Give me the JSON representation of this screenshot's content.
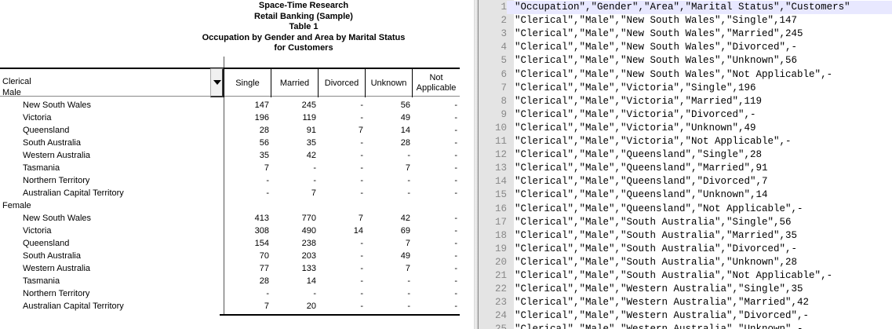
{
  "report": {
    "titles": [
      "Space-Time Research",
      "Retail Banking (Sample)",
      "Table 1",
      "Occupation by Gender and Area by Marital Status",
      "for Customers"
    ],
    "row_selector": "Clerical",
    "columns": [
      "Single",
      "Married",
      "Divorced",
      "Unknown",
      "Not Applicable"
    ],
    "groups": [
      {
        "label": "Male",
        "rows": [
          {
            "area": "New South Wales",
            "values": [
              "147",
              "245",
              "-",
              "56",
              "-"
            ]
          },
          {
            "area": "Victoria",
            "values": [
              "196",
              "119",
              "-",
              "49",
              "-"
            ]
          },
          {
            "area": "Queensland",
            "values": [
              "28",
              "91",
              "7",
              "14",
              "-"
            ]
          },
          {
            "area": "South Australia",
            "values": [
              "56",
              "35",
              "-",
              "28",
              "-"
            ]
          },
          {
            "area": "Western Australia",
            "values": [
              "35",
              "42",
              "-",
              "-",
              "-"
            ]
          },
          {
            "area": "Tasmania",
            "values": [
              "7",
              "-",
              "-",
              "7",
              "-"
            ]
          },
          {
            "area": "Northern Territory",
            "values": [
              "-",
              "-",
              "-",
              "-",
              "-"
            ]
          },
          {
            "area": "Australian Capital Territory",
            "values": [
              "-",
              "7",
              "-",
              "-",
              "-"
            ]
          }
        ]
      },
      {
        "label": "Female",
        "rows": [
          {
            "area": "New South Wales",
            "values": [
              "413",
              "770",
              "7",
              "42",
              "-"
            ]
          },
          {
            "area": "Victoria",
            "values": [
              "308",
              "490",
              "14",
              "69",
              "-"
            ]
          },
          {
            "area": "Queensland",
            "values": [
              "154",
              "238",
              "-",
              "7",
              "-"
            ]
          },
          {
            "area": "South Australia",
            "values": [
              "70",
              "203",
              "-",
              "49",
              "-"
            ]
          },
          {
            "area": "Western Australia",
            "values": [
              "77",
              "133",
              "-",
              "7",
              "-"
            ]
          },
          {
            "area": "Tasmania",
            "values": [
              "28",
              "14",
              "-",
              "-",
              "-"
            ]
          },
          {
            "area": "Northern Territory",
            "values": [
              "-",
              "-",
              "-",
              "-",
              "-"
            ]
          },
          {
            "area": "Australian Capital Territory",
            "values": [
              "7",
              "20",
              "-",
              "-",
              "-"
            ]
          }
        ]
      }
    ]
  },
  "editor": {
    "lines": [
      "\"Occupation\",\"Gender\",\"Area\",\"Marital Status\",\"Customers\"",
      "\"Clerical\",\"Male\",\"New South Wales\",\"Single\",147",
      "\"Clerical\",\"Male\",\"New South Wales\",\"Married\",245",
      "\"Clerical\",\"Male\",\"New South Wales\",\"Divorced\",-",
      "\"Clerical\",\"Male\",\"New South Wales\",\"Unknown\",56",
      "\"Clerical\",\"Male\",\"New South Wales\",\"Not Applicable\",-",
      "\"Clerical\",\"Male\",\"Victoria\",\"Single\",196",
      "\"Clerical\",\"Male\",\"Victoria\",\"Married\",119",
      "\"Clerical\",\"Male\",\"Victoria\",\"Divorced\",-",
      "\"Clerical\",\"Male\",\"Victoria\",\"Unknown\",49",
      "\"Clerical\",\"Male\",\"Victoria\",\"Not Applicable\",-",
      "\"Clerical\",\"Male\",\"Queensland\",\"Single\",28",
      "\"Clerical\",\"Male\",\"Queensland\",\"Married\",91",
      "\"Clerical\",\"Male\",\"Queensland\",\"Divorced\",7",
      "\"Clerical\",\"Male\",\"Queensland\",\"Unknown\",14",
      "\"Clerical\",\"Male\",\"Queensland\",\"Not Applicable\",-",
      "\"Clerical\",\"Male\",\"South Australia\",\"Single\",56",
      "\"Clerical\",\"Male\",\"South Australia\",\"Married\",35",
      "\"Clerical\",\"Male\",\"South Australia\",\"Divorced\",-",
      "\"Clerical\",\"Male\",\"South Australia\",\"Unknown\",28",
      "\"Clerical\",\"Male\",\"South Australia\",\"Not Applicable\",-",
      "\"Clerical\",\"Male\",\"Western Australia\",\"Single\",35",
      "\"Clerical\",\"Male\",\"Western Australia\",\"Married\",42",
      "\"Clerical\",\"Male\",\"Western Australia\",\"Divorced\",-",
      "\"Clerical\",\"Male\",\"Western Australia\",\"Unknown\",-"
    ],
    "highlight_line": 1,
    "highlight_color": "#e8e8ff"
  }
}
